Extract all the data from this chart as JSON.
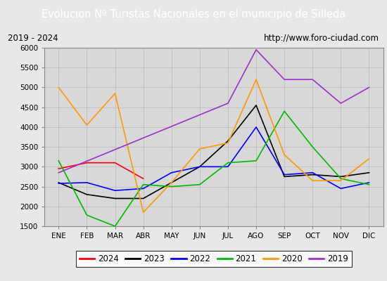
{
  "title": "Evolucion Nº Turistas Nacionales en el municipio de Silleda",
  "subtitle_left": "2019 - 2024",
  "subtitle_right": "http://www.foro-ciudad.com",
  "months": [
    "ENE",
    "FEB",
    "MAR",
    "ABR",
    "MAY",
    "JUN",
    "JUL",
    "AGO",
    "SEP",
    "OCT",
    "NOV",
    "DIC"
  ],
  "ylim": [
    1500,
    6000
  ],
  "yticks": [
    1500,
    2000,
    2500,
    3000,
    3500,
    4000,
    4500,
    5000,
    5500,
    6000
  ],
  "series": {
    "2024": {
      "color": "#ff0000",
      "data": [
        2950,
        3100,
        3100,
        2700,
        null,
        null,
        null,
        null,
        null,
        null,
        null,
        null
      ]
    },
    "2023": {
      "color": "#000000",
      "data": [
        2600,
        2300,
        2200,
        2200,
        2600,
        3000,
        3650,
        4550,
        2750,
        2800,
        2750,
        2850
      ]
    },
    "2022": {
      "color": "#0000ff",
      "data": [
        2580,
        2600,
        2400,
        2450,
        2850,
        3000,
        3000,
        4000,
        2800,
        2850,
        2450,
        2600
      ]
    },
    "2021": {
      "color": "#00bb00",
      "data": [
        3150,
        1780,
        1500,
        2550,
        2500,
        2550,
        3100,
        3150,
        4400,
        3500,
        2700,
        2550
      ]
    },
    "2020": {
      "color": "#ff9900",
      "data": [
        5000,
        4050,
        4850,
        1850,
        2600,
        3450,
        3600,
        5200,
        3300,
        2650,
        2650,
        3200
      ]
    },
    "2019": {
      "color": "#9933cc",
      "data": [
        2850,
        null,
        null,
        null,
        null,
        null,
        4600,
        5950,
        5200,
        5200,
        4600,
        5000
      ]
    }
  },
  "title_bg": "#4d79ff",
  "title_color": "#ffffff",
  "title_fontsize": 10.5,
  "subtitle_fontsize": 8.5,
  "tick_fontsize": 7.5,
  "legend_fontsize": 8.5,
  "background_color": "#e8e8e8",
  "plot_bg": "#d8d8d8",
  "grid_color": "#bbbbbb"
}
